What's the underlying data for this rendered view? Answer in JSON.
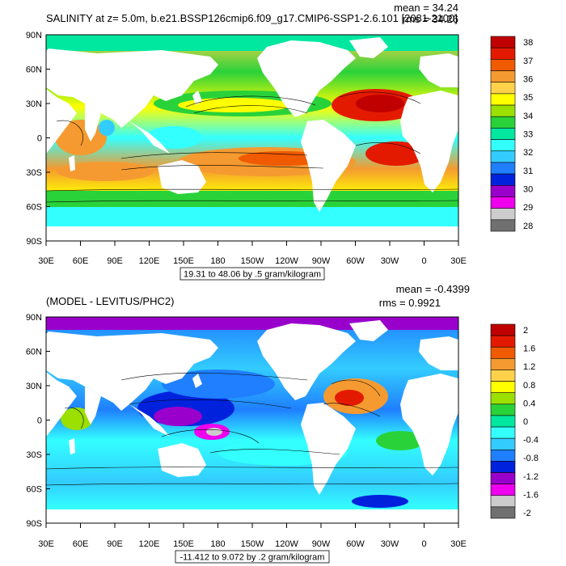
{
  "panels": [
    {
      "id": "top",
      "title": "SALINITY at z=   5.0m, b.e21.BSSP126cmip6.f09_g17.CMIP6-SSP1-2.6.101 [2081-2100]",
      "mean_label": "mean = 34.24",
      "rms_label": "rms = 34.26",
      "subtitle": "19.31 to 48.06 by .5 gram/kilogram",
      "y_ticks": [
        "90N",
        "60N",
        "30N",
        "0",
        "30S",
        "60S",
        "90S"
      ],
      "x_ticks": [
        "30E",
        "60E",
        "90E",
        "120E",
        "150E",
        "180",
        "150W",
        "120W",
        "90W",
        "60W",
        "30W",
        "0",
        "30E"
      ],
      "colorbar": {
        "labels": [
          "38",
          "37",
          "36",
          "35",
          "34",
          "33",
          "32",
          "31",
          "30",
          "29",
          "28"
        ],
        "colors": [
          "#c00000",
          "#e41a00",
          "#f05a00",
          "#f59a30",
          "#ffd24a",
          "#ffff00",
          "#9be000",
          "#2ad23a",
          "#00e8a0",
          "#33ffff",
          "#33ccff",
          "#1f7fff",
          "#0022dd",
          "#9a00cc",
          "#ee00ee",
          "#cccccc",
          "#707070"
        ]
      }
    },
    {
      "id": "bottom",
      "title": "(MODEL - LEVITUS/PHC2)",
      "mean_label": "mean = -0.4399",
      "rms_label": "rms = 0.9921",
      "subtitle": "-11.412 to 9.072 by .2 gram/kilogram",
      "y_ticks": [
        "90N",
        "60N",
        "30N",
        "0",
        "30S",
        "60S",
        "90S"
      ],
      "x_ticks": [
        "30E",
        "60E",
        "90E",
        "120E",
        "150E",
        "180",
        "150W",
        "120W",
        "90W",
        "60W",
        "30W",
        "0",
        "30E"
      ],
      "colorbar": {
        "labels": [
          "2",
          "1.6",
          "1.2",
          "0.8",
          "0.4",
          "0",
          "-0.4",
          "-0.8",
          "-1.2",
          "-1.6",
          "-2"
        ],
        "colors": [
          "#c00000",
          "#e41a00",
          "#f05a00",
          "#f59a30",
          "#ffd24a",
          "#ffff00",
          "#9be000",
          "#2ad23a",
          "#00e8a0",
          "#33ffff",
          "#33ccff",
          "#1f7fff",
          "#0022dd",
          "#9a00cc",
          "#ee00ee",
          "#cccccc",
          "#707070"
        ]
      }
    }
  ]
}
